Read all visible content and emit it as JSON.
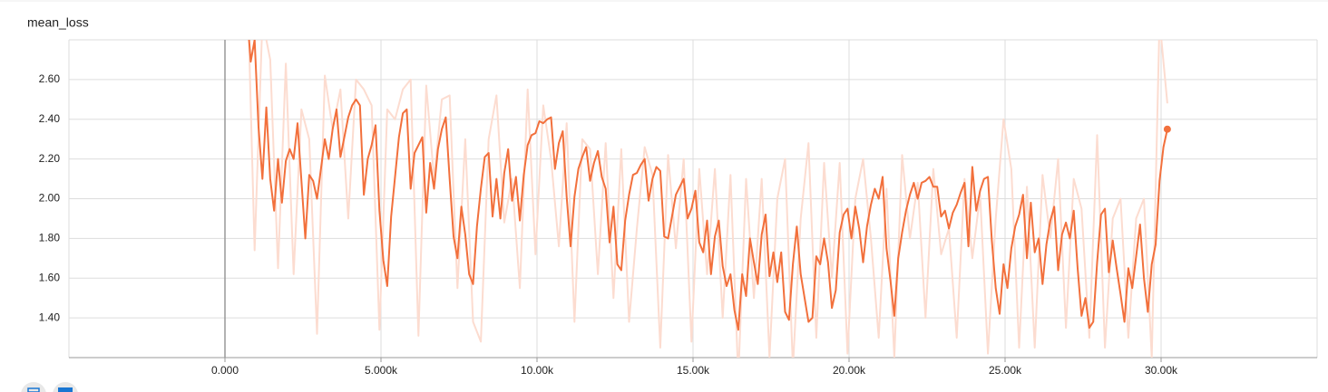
{
  "chart_data": {
    "type": "line",
    "title": "mean_loss",
    "xlim": [
      -5000,
      35000
    ],
    "ylim": [
      1.2,
      2.8
    ],
    "xticks": [
      {
        "value": 0,
        "label": "0.000"
      },
      {
        "value": 5000,
        "label": "5.000k"
      },
      {
        "value": 10000,
        "label": "10.00k"
      },
      {
        "value": 15000,
        "label": "15.00k"
      },
      {
        "value": 20000,
        "label": "20.00k"
      },
      {
        "value": 25000,
        "label": "25.00k"
      },
      {
        "value": 30000,
        "label": "30.00k"
      }
    ],
    "yticks": [
      {
        "value": 1.4,
        "label": "1.40"
      },
      {
        "value": 1.6,
        "label": "1.60"
      },
      {
        "value": 1.8,
        "label": "1.80"
      },
      {
        "value": 2,
        "label": "2.00"
      },
      {
        "value": 2.2,
        "label": "2.20"
      },
      {
        "value": 2.4,
        "label": "2.40"
      },
      {
        "value": 2.6,
        "label": "2.60"
      }
    ],
    "grid": true,
    "series": [
      {
        "color": "#fcdcd0",
        "width": 2,
        "x": [
          700,
          950,
          1200,
          1450,
          1700,
          1950,
          2200,
          2450,
          2700,
          2950,
          3200,
          3450,
          3700,
          3950,
          4200,
          4450,
          4700,
          4950,
          5200,
          5450,
          5700,
          5950,
          6200,
          6450,
          6700,
          6950,
          7200,
          7450,
          7700,
          7950,
          8200,
          8450,
          8700,
          8950,
          9200,
          9450,
          9700,
          9950,
          10200,
          10450,
          10700,
          10950,
          11200,
          11450,
          11700,
          11950,
          12200,
          12450,
          12700,
          12950,
          13200,
          13450,
          13700,
          13950,
          14200,
          14450,
          14700,
          14950,
          15200,
          15450,
          15700,
          15950,
          16200,
          16450,
          16700,
          16950,
          17200,
          17450,
          17700,
          17950,
          18200,
          18450,
          18700,
          18950,
          19200,
          19450,
          19700,
          19950,
          20200,
          20450,
          20700,
          20950,
          21200,
          21450,
          21700,
          21950,
          22200,
          22450,
          22700,
          22950,
          23200,
          23450,
          23700,
          23950,
          24200,
          24450,
          24700,
          24950,
          25200,
          25450,
          25700,
          25950,
          26200,
          26450,
          26700,
          26950,
          27200,
          27450,
          27700,
          27950,
          28200,
          28450,
          28700,
          28950,
          29200,
          29450,
          29700,
          29950,
          30200
        ],
        "values": [
          3.2,
          1.74,
          2.9,
          2.7,
          1.65,
          2.68,
          1.62,
          2.45,
          2.3,
          1.32,
          2.62,
          2.35,
          2.55,
          1.9,
          2.6,
          2.55,
          2.47,
          1.34,
          2.45,
          2.4,
          2.55,
          2.6,
          1.31,
          2.57,
          2.1,
          2.5,
          2.52,
          1.55,
          2.3,
          1.38,
          1.28,
          2.3,
          2.52,
          1.88,
          2.1,
          1.55,
          2.55,
          1.72,
          2.47,
          2.2,
          1.76,
          2.38,
          1.38,
          2.3,
          2.25,
          1.62,
          2.28,
          1.5,
          2.25,
          1.38,
          1.85,
          2.26,
          2.12,
          1.25,
          2.22,
          1.75,
          2.2,
          1.28,
          2.15,
          1.62,
          2.15,
          1.4,
          2.12,
          1.1,
          2.1,
          1.5,
          2.1,
          1.2,
          2.0,
          2.2,
          1.15,
          1.9,
          2.28,
          1.3,
          2.18,
          1.6,
          2.18,
          1.22,
          2.0,
          2.2,
          1.8,
          1.3,
          2.05,
          1.2,
          2.22,
          1.8,
          2.08,
          1.4,
          2.15,
          1.72,
          1.85,
          1.3,
          2.1,
          1.7,
          2.02,
          1.22,
          1.9,
          2.4,
          2.15,
          1.25,
          2.06,
          1.25,
          2.12,
          1.8,
          2.2,
          1.35,
          2.1,
          1.95,
          1.3,
          2.32,
          1.25,
          1.9,
          2.0,
          1.3,
          1.9,
          2.0,
          1.2,
          2.9,
          2.48
        ]
      },
      {
        "color": "#f2703c",
        "width": 2,
        "end_marker": true,
        "x": [
          700,
          825,
          950,
          1075,
          1200,
          1325,
          1450,
          1575,
          1700,
          1825,
          1950,
          2075,
          2200,
          2325,
          2450,
          2575,
          2700,
          2825,
          2950,
          3075,
          3200,
          3325,
          3450,
          3575,
          3700,
          3825,
          3950,
          4075,
          4200,
          4325,
          4450,
          4575,
          4700,
          4825,
          4950,
          5075,
          5200,
          5325,
          5450,
          5575,
          5700,
          5825,
          5950,
          6075,
          6200,
          6325,
          6450,
          6575,
          6700,
          6825,
          6950,
          7075,
          7200,
          7325,
          7450,
          7575,
          7700,
          7825,
          7950,
          8075,
          8200,
          8325,
          8450,
          8575,
          8700,
          8825,
          8950,
          9075,
          9200,
          9325,
          9450,
          9575,
          9700,
          9825,
          9950,
          10075,
          10200,
          10325,
          10450,
          10575,
          10700,
          10825,
          10950,
          11075,
          11200,
          11325,
          11450,
          11575,
          11700,
          11825,
          11950,
          12075,
          12200,
          12325,
          12450,
          12575,
          12700,
          12825,
          12950,
          13075,
          13200,
          13325,
          13450,
          13575,
          13700,
          13825,
          13950,
          14075,
          14200,
          14325,
          14450,
          14575,
          14700,
          14825,
          14950,
          15075,
          15200,
          15325,
          15450,
          15575,
          15700,
          15825,
          15950,
          16075,
          16200,
          16325,
          16450,
          16575,
          16700,
          16825,
          16950,
          17075,
          17200,
          17325,
          17450,
          17575,
          17700,
          17825,
          17950,
          18075,
          18200,
          18325,
          18450,
          18575,
          18700,
          18825,
          18950,
          19075,
          19200,
          19325,
          19450,
          19575,
          19700,
          19825,
          19950,
          20075,
          20200,
          20325,
          20450,
          20575,
          20700,
          20825,
          20950,
          21075,
          21200,
          21325,
          21450,
          21575,
          21700,
          21825,
          21950,
          22075,
          22200,
          22325,
          22450,
          22575,
          22700,
          22825,
          22950,
          23075,
          23200,
          23325,
          23450,
          23575,
          23700,
          23825,
          23950,
          24075,
          24200,
          24325,
          24450,
          24575,
          24700,
          24825,
          24950,
          25075,
          25200,
          25325,
          25450,
          25575,
          25700,
          25825,
          25950,
          26075,
          26200,
          26325,
          26450,
          26575,
          26700,
          26825,
          26950,
          27075,
          27200,
          27325,
          27450,
          27575,
          27700,
          27825,
          27950,
          28075,
          28200,
          28325,
          28450,
          28575,
          28700,
          28825,
          28950,
          29075,
          29200,
          29325,
          29450,
          29575,
          29700,
          29825,
          29950,
          30075,
          30200
        ],
        "values": [
          2.95,
          2.69,
          2.8,
          2.36,
          2.1,
          2.46,
          2.1,
          1.94,
          2.2,
          1.98,
          2.19,
          2.25,
          2.2,
          2.38,
          2.09,
          1.8,
          2.12,
          2.09,
          2.0,
          2.15,
          2.3,
          2.2,
          2.35,
          2.45,
          2.21,
          2.31,
          2.41,
          2.47,
          2.5,
          2.47,
          2.02,
          2.2,
          2.27,
          2.37,
          1.94,
          1.69,
          1.56,
          1.91,
          2.11,
          2.31,
          2.43,
          2.45,
          2.05,
          2.23,
          2.27,
          2.31,
          1.93,
          2.18,
          2.05,
          2.25,
          2.35,
          2.41,
          2.1,
          1.81,
          1.7,
          1.96,
          1.82,
          1.62,
          1.57,
          1.86,
          2.05,
          2.21,
          2.23,
          1.91,
          2.1,
          1.9,
          2.13,
          2.25,
          1.99,
          2.11,
          1.89,
          2.12,
          2.27,
          2.32,
          2.33,
          2.39,
          2.38,
          2.4,
          2.41,
          2.15,
          2.28,
          2.34,
          2.01,
          1.76,
          2.01,
          2.15,
          2.21,
          2.26,
          2.09,
          2.18,
          2.24,
          2.11,
          2.05,
          1.78,
          1.96,
          1.67,
          1.64,
          1.89,
          2.02,
          2.12,
          2.13,
          2.17,
          2.2,
          1.99,
          2.1,
          2.16,
          2.14,
          1.81,
          1.8,
          1.91,
          2.02,
          2.06,
          2.1,
          1.9,
          1.95,
          2.04,
          1.78,
          1.73,
          1.89,
          1.62,
          1.81,
          1.89,
          1.66,
          1.56,
          1.62,
          1.44,
          1.34,
          1.62,
          1.51,
          1.8,
          1.68,
          1.57,
          1.82,
          1.92,
          1.61,
          1.73,
          1.58,
          1.73,
          1.43,
          1.39,
          1.67,
          1.86,
          1.62,
          1.5,
          1.38,
          1.4,
          1.71,
          1.67,
          1.8,
          1.68,
          1.45,
          1.54,
          1.83,
          1.92,
          1.95,
          1.8,
          1.96,
          1.85,
          1.68,
          1.86,
          1.97,
          2.05,
          2.0,
          2.11,
          1.75,
          1.59,
          1.41,
          1.7,
          1.83,
          1.94,
          2.02,
          2.08,
          2.0,
          2.08,
          2.09,
          2.11,
          2.06,
          2.06,
          1.91,
          1.94,
          1.85,
          1.93,
          1.97,
          2.03,
          2.08,
          1.76,
          2.16,
          1.94,
          2.04,
          2.1,
          2.11,
          1.79,
          1.55,
          1.42,
          1.67,
          1.55,
          1.75,
          1.86,
          1.92,
          2.02,
          1.7,
          1.98,
          1.73,
          1.8,
          1.57,
          1.77,
          1.89,
          1.96,
          1.64,
          1.82,
          1.88,
          1.8,
          1.94,
          1.65,
          1.41,
          1.5,
          1.35,
          1.38,
          1.68,
          1.92,
          1.95,
          1.63,
          1.79,
          1.65,
          1.52,
          1.38,
          1.65,
          1.55,
          1.71,
          1.87,
          1.6,
          1.43,
          1.67,
          1.77,
          2.09,
          2.26,
          2.35
        ]
      }
    ]
  }
}
